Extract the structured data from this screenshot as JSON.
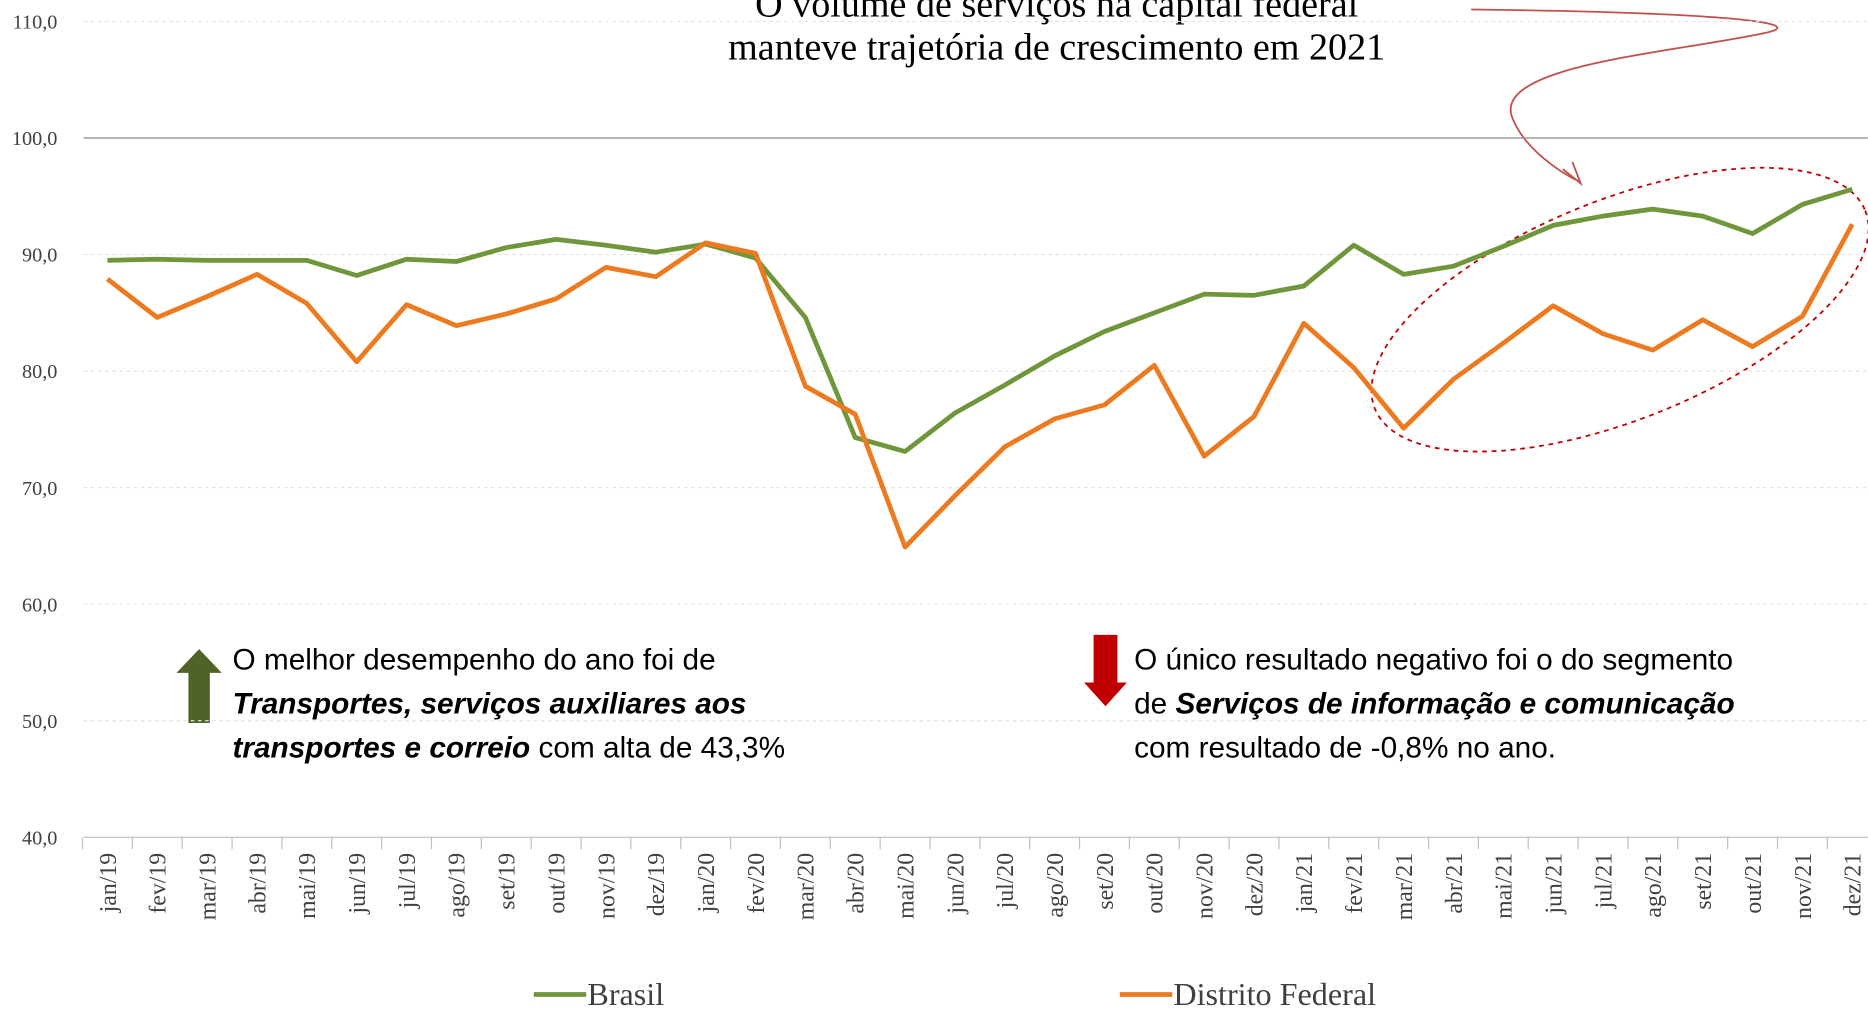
{
  "chart_data": {
    "type": "line",
    "title": [
      "O volume de serviços na capital federal",
      "manteve trajetória de crescimento em 2021"
    ],
    "categories": [
      "jan/19",
      "fev/19",
      "mar/19",
      "abr/19",
      "mai/19",
      "jun/19",
      "jul/19",
      "ago/19",
      "set/19",
      "out/19",
      "nov/19",
      "dez/19",
      "jan/20",
      "fev/20",
      "mar/20",
      "abr/20",
      "mai/20",
      "jun/20",
      "jul/20",
      "ago/20",
      "set/20",
      "out/20",
      "nov/20",
      "dez/20",
      "jan/21",
      "fev/21",
      "mar/21",
      "abr/21",
      "mai/21",
      "jun/21",
      "jul/21",
      "ago/21",
      "set/21",
      "out/21",
      "nov/21",
      "dez/21"
    ],
    "series": [
      {
        "name": "Brasil",
        "color": "#70963b",
        "values": [
          89.5,
          89.6,
          89.5,
          89.5,
          89.5,
          88.2,
          89.6,
          89.4,
          90.6,
          91.3,
          90.8,
          90.2,
          90.9,
          89.7,
          84.6,
          74.3,
          73.1,
          76.4,
          78.8,
          81.3,
          83.4,
          85.0,
          86.6,
          86.5,
          87.3,
          90.8,
          88.3,
          89.0,
          90.7,
          92.5,
          93.3,
          93.9,
          93.3,
          91.8,
          94.3,
          95.6
        ]
      },
      {
        "name": "Distrito Federal",
        "color": "#ed7a1e",
        "values": [
          87.9,
          84.6,
          86.4,
          88.3,
          85.8,
          80.8,
          85.7,
          83.9,
          84.9,
          86.2,
          88.9,
          88.1,
          91.0,
          90.1,
          78.7,
          76.3,
          64.9,
          69.3,
          73.5,
          75.9,
          77.1,
          80.5,
          72.7,
          76.1,
          84.1,
          80.3,
          75.1,
          79.3,
          82.4,
          85.6,
          83.2,
          81.8,
          84.4,
          82.1,
          84.7,
          92.6
        ]
      }
    ],
    "ylim": [
      40,
      110
    ],
    "yticks": [
      {
        "value": 40,
        "label": "40,0"
      },
      {
        "value": 50,
        "label": "50,0"
      },
      {
        "value": 60,
        "label": "60,0"
      },
      {
        "value": 70,
        "label": "70,0"
      },
      {
        "value": 80,
        "label": "80,0"
      },
      {
        "value": 90,
        "label": "90,0"
      },
      {
        "value": 100,
        "label": "100,0"
      },
      {
        "value": 110,
        "label": "110,0"
      }
    ],
    "grid": true,
    "annotations": [
      {
        "lines": [
          [
            {
              "text": "O melhor desempenho do ano foi de",
              "style": "normal"
            }
          ],
          [
            {
              "text": "Transportes, serviços auxiliares aos",
              "style": "bold-italic"
            }
          ],
          [
            {
              "text": "transportes e correio",
              "style": "bold-italic"
            },
            {
              "text": " com alta de 43,3%",
              "style": "normal"
            }
          ]
        ]
      },
      {
        "lines": [
          [
            {
              "text": "O único resultado negativo foi o do segmento",
              "style": "normal"
            }
          ],
          [
            {
              "text": "de ",
              "style": "normal"
            },
            {
              "text": "Serviços de informação e comunicação",
              "style": "bold-italic"
            }
          ],
          [
            {
              "text": "com resultado de -0,8% no ano.",
              "style": "normal"
            }
          ]
        ]
      }
    ]
  }
}
